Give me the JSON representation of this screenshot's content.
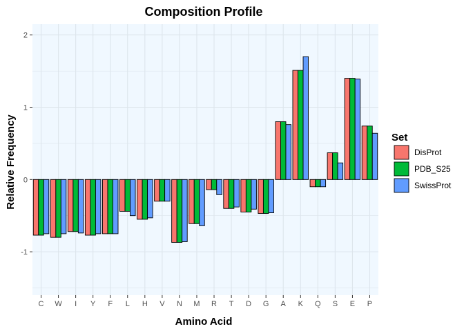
{
  "chart_data": {
    "type": "bar",
    "title": "Composition Profile",
    "xlabel": "Amino Acid",
    "ylabel": "Relative Frequency",
    "categories": [
      "C",
      "W",
      "I",
      "Y",
      "F",
      "L",
      "H",
      "V",
      "N",
      "M",
      "R",
      "T",
      "D",
      "G",
      "A",
      "K",
      "Q",
      "S",
      "E",
      "P"
    ],
    "series": [
      {
        "name": "DisProt",
        "color": "#F8766D",
        "values": [
          -0.77,
          -0.8,
          -0.72,
          -0.77,
          -0.75,
          -0.44,
          -0.55,
          -0.3,
          -0.87,
          -0.61,
          -0.14,
          -0.4,
          -0.45,
          -0.47,
          0.8,
          1.51,
          -0.1,
          0.37,
          1.4,
          0.74
        ]
      },
      {
        "name": "PDB_S25",
        "color": "#00BA38",
        "values": [
          -0.77,
          -0.8,
          -0.72,
          -0.77,
          -0.75,
          -0.44,
          -0.55,
          -0.3,
          -0.87,
          -0.61,
          -0.14,
          -0.4,
          -0.45,
          -0.47,
          0.8,
          1.51,
          -0.1,
          0.37,
          1.4,
          0.74
        ]
      },
      {
        "name": "SwissProt",
        "color": "#619CFF",
        "values": [
          -0.75,
          -0.75,
          -0.74,
          -0.75,
          -0.75,
          -0.5,
          -0.53,
          -0.3,
          -0.86,
          -0.64,
          -0.21,
          -0.38,
          -0.41,
          -0.46,
          0.76,
          1.7,
          -0.1,
          0.23,
          1.39,
          0.64
        ]
      }
    ],
    "yticks": [
      -1,
      0,
      1,
      2
    ],
    "ylim": [
      -1.6,
      2.15
    ],
    "grid": true,
    "background": "#F0F8FF",
    "grid_color": "#DDE5EC",
    "legend": {
      "title": "Set",
      "position": "right"
    }
  }
}
